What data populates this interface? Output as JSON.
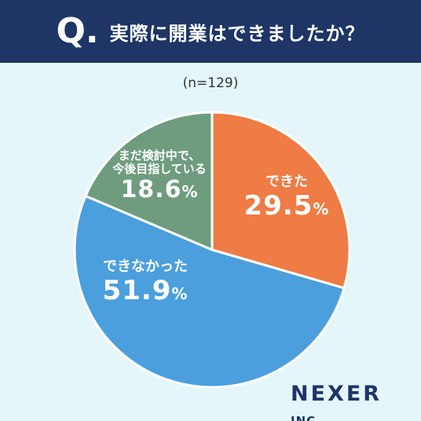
{
  "header": {
    "q_mark": "Q.",
    "question": "実際に開業はできましたか？"
  },
  "sample_size": "(n=129)",
  "chart_data": {
    "type": "pie",
    "slices": [
      {
        "label": "できた",
        "value": 29.5,
        "display": "29.5",
        "color": "#ef7b45"
      },
      {
        "label": "できなかった",
        "value": 51.9,
        "display": "51.9",
        "color": "#4b9fdd"
      },
      {
        "label_lines": [
          "まだ検討中で、",
          "今後目指している"
        ],
        "value": 18.6,
        "display": "18.6",
        "color": "#6f9c7f"
      }
    ],
    "unit": "%",
    "start": "12 o'clock",
    "direction": "clockwise"
  },
  "brand": {
    "name": "NEXER",
    "suffix": "INC."
  }
}
